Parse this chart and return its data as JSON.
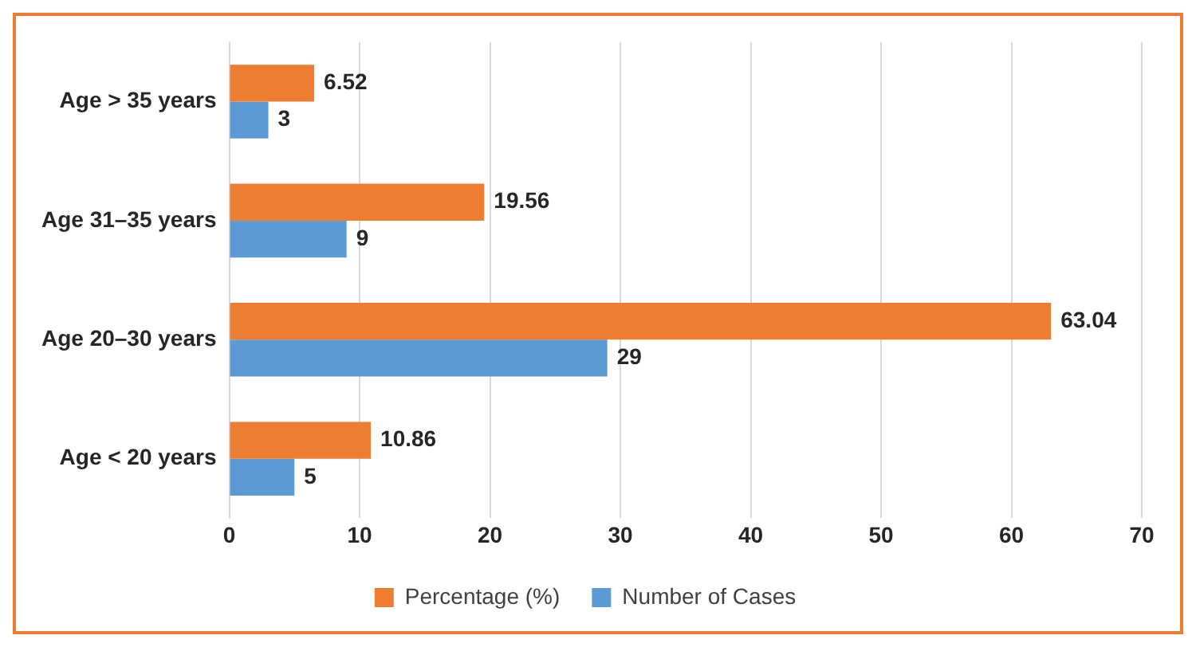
{
  "chart_data": {
    "type": "bar",
    "orientation": "horizontal",
    "categories": [
      "Age > 35 years",
      "Age 31–35 years",
      "Age 20–30 years",
      "Age < 20 years"
    ],
    "series": [
      {
        "name": "Percentage (%)",
        "color": "#ed7d31",
        "values": [
          6.52,
          19.56,
          63.04,
          10.86
        ]
      },
      {
        "name": "Number of Cases",
        "color": "#5b9bd5",
        "values": [
          3,
          9,
          29,
          5
        ]
      }
    ],
    "xlim": [
      0,
      70
    ],
    "xticks": [
      0,
      10,
      20,
      30,
      40,
      50,
      60,
      70
    ],
    "grid": "x",
    "legend": "bottom",
    "data_labels": true
  }
}
